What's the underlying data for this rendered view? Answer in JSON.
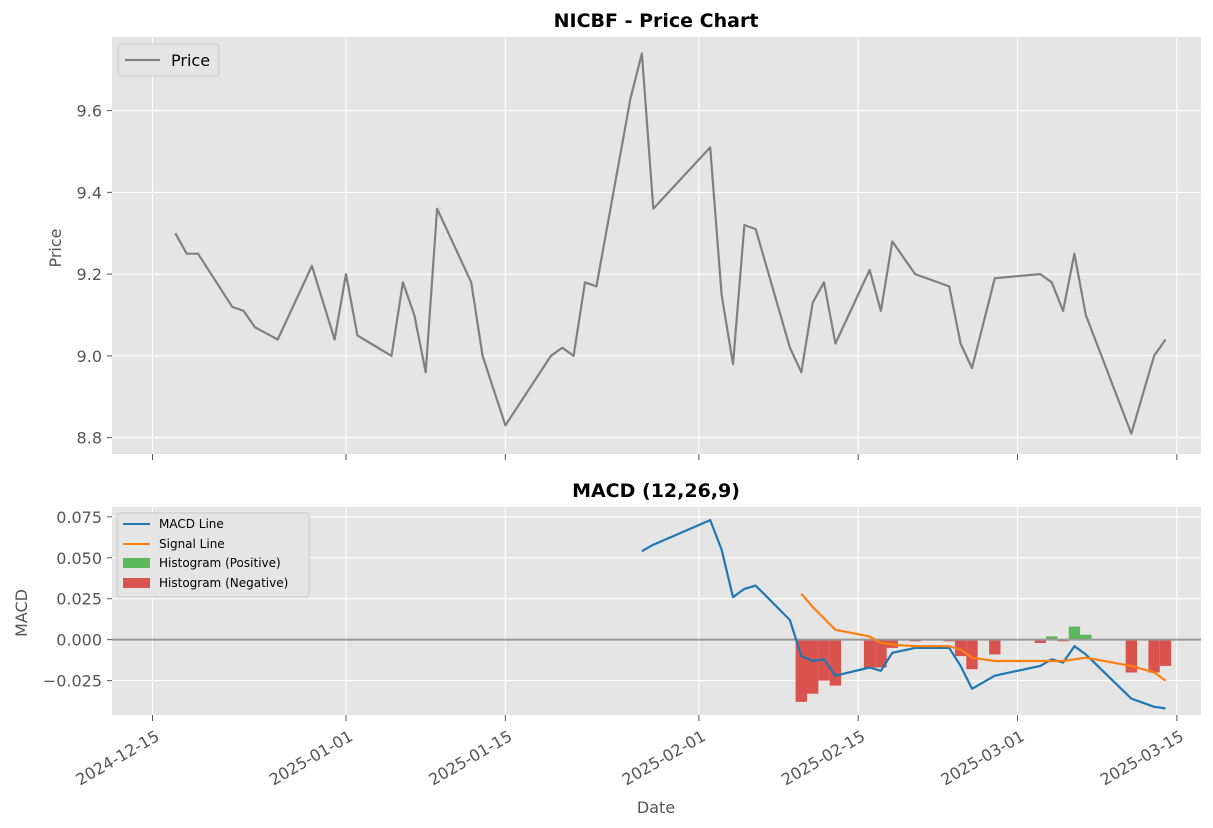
{
  "chart_data": [
    {
      "type": "line",
      "title": "NICBF - Price Chart",
      "xlabel": "",
      "ylabel": "Price",
      "ylim": [
        8.76,
        9.78
      ],
      "yticks": [
        "8.8",
        "9.0",
        "9.2",
        "9.4",
        "9.6"
      ],
      "legend": {
        "position": "top-left",
        "entries": [
          "Price"
        ]
      },
      "grid": true,
      "colors": {
        "price": "#808080",
        "panel": "#e5e5e5",
        "grid": "#ffffff"
      },
      "series": [
        {
          "name": "Price",
          "x": [
            "2024-12-17",
            "2024-12-18",
            "2024-12-19",
            "2024-12-22",
            "2024-12-23",
            "2024-12-24",
            "2024-12-26",
            "2024-12-29",
            "2024-12-31",
            "2025-01-01",
            "2025-01-02",
            "2025-01-05",
            "2025-01-06",
            "2025-01-07",
            "2025-01-08",
            "2025-01-09",
            "2025-01-12",
            "2025-01-13",
            "2025-01-15",
            "2025-01-19",
            "2025-01-20",
            "2025-01-21",
            "2025-01-22",
            "2025-01-23",
            "2025-01-26",
            "2025-01-27",
            "2025-01-28",
            "2025-02-02",
            "2025-02-03",
            "2025-02-04",
            "2025-02-05",
            "2025-02-06",
            "2025-02-09",
            "2025-02-10",
            "2025-02-11",
            "2025-02-12",
            "2025-02-13",
            "2025-02-16",
            "2025-02-17",
            "2025-02-18",
            "2025-02-20",
            "2025-02-23",
            "2025-02-24",
            "2025-02-25",
            "2025-02-27",
            "2025-03-03",
            "2025-03-04",
            "2025-03-05",
            "2025-03-06",
            "2025-03-07",
            "2025-03-11",
            "2025-03-13",
            "2025-03-14"
          ],
          "values": [
            9.3,
            9.25,
            9.25,
            9.12,
            9.11,
            9.07,
            9.04,
            9.22,
            9.04,
            9.2,
            9.05,
            9.0,
            9.18,
            9.1,
            8.96,
            9.36,
            9.18,
            9.0,
            8.83,
            9.0,
            9.02,
            9.0,
            9.18,
            9.17,
            9.63,
            9.74,
            9.36,
            9.51,
            9.15,
            8.98,
            9.32,
            9.31,
            9.02,
            8.96,
            9.13,
            9.18,
            9.03,
            9.21,
            9.11,
            9.28,
            9.2,
            9.17,
            9.03,
            8.97,
            9.19,
            9.2,
            9.18,
            9.11,
            9.25,
            9.1,
            8.81,
            9.0,
            9.04
          ]
        }
      ]
    },
    {
      "type": "line",
      "title": "MACD (12,26,9)",
      "xlabel": "Date",
      "ylabel": "MACD",
      "ylim": [
        -0.046,
        0.081
      ],
      "yticks": [
        "−0.025",
        "0.000",
        "0.025",
        "0.050",
        "0.075"
      ],
      "xticks": [
        "2024-12-15",
        "2025-01-01",
        "2025-01-15",
        "2025-02-01",
        "2025-02-15",
        "2025-03-01",
        "2025-03-15"
      ],
      "legend": {
        "position": "top-left",
        "entries": [
          "MACD Line",
          "Signal Line",
          "Histogram (Positive)",
          "Histogram (Negative)"
        ]
      },
      "grid": true,
      "colors": {
        "macd": "#1f77b4",
        "signal": "#ff7f0e",
        "hist_pos": "#5cb85c",
        "hist_neg": "#d9534f",
        "zero": "#999999"
      },
      "series": [
        {
          "name": "MACD Line",
          "x": [
            "2025-01-27",
            "2025-01-28",
            "2025-02-02",
            "2025-02-03",
            "2025-02-04",
            "2025-02-05",
            "2025-02-06",
            "2025-02-09",
            "2025-02-10",
            "2025-02-11",
            "2025-02-12",
            "2025-02-13",
            "2025-02-16",
            "2025-02-17",
            "2025-02-18",
            "2025-02-20",
            "2025-02-23",
            "2025-02-24",
            "2025-02-25",
            "2025-02-27",
            "2025-03-03",
            "2025-03-04",
            "2025-03-05",
            "2025-03-06",
            "2025-03-07",
            "2025-03-11",
            "2025-03-13",
            "2025-03-14"
          ],
          "values": [
            0.054,
            0.058,
            0.073,
            0.055,
            0.026,
            0.031,
            0.033,
            0.012,
            -0.01,
            -0.013,
            -0.012,
            -0.022,
            -0.017,
            -0.019,
            -0.008,
            -0.005,
            -0.005,
            -0.016,
            -0.03,
            -0.022,
            -0.016,
            -0.012,
            -0.014,
            -0.004,
            -0.009,
            -0.036,
            -0.041,
            -0.042
          ]
        },
        {
          "name": "Signal Line",
          "x": [
            "2025-02-10",
            "2025-02-11",
            "2025-02-12",
            "2025-02-13",
            "2025-02-16",
            "2025-02-17",
            "2025-02-18",
            "2025-02-20",
            "2025-02-23",
            "2025-02-24",
            "2025-02-25",
            "2025-02-27",
            "2025-03-03",
            "2025-03-04",
            "2025-03-05",
            "2025-03-06",
            "2025-03-07",
            "2025-03-11",
            "2025-03-13",
            "2025-03-14"
          ],
          "values": [
            0.028,
            0.02,
            0.013,
            0.006,
            0.002,
            -0.002,
            -0.003,
            -0.004,
            -0.004,
            -0.006,
            -0.011,
            -0.013,
            -0.013,
            -0.013,
            -0.013,
            -0.012,
            -0.011,
            -0.016,
            -0.02,
            -0.025
          ]
        },
        {
          "name": "Histogram",
          "x": [
            "2025-02-10",
            "2025-02-11",
            "2025-02-12",
            "2025-02-13",
            "2025-02-16",
            "2025-02-17",
            "2025-02-18",
            "2025-02-20",
            "2025-02-23",
            "2025-02-24",
            "2025-02-25",
            "2025-02-27",
            "2025-03-03",
            "2025-03-04",
            "2025-03-05",
            "2025-03-06",
            "2025-03-07",
            "2025-03-11",
            "2025-03-13",
            "2025-03-14"
          ],
          "values": [
            -0.038,
            -0.033,
            -0.025,
            -0.028,
            -0.017,
            -0.017,
            -0.005,
            -0.001,
            -0.001,
            -0.01,
            -0.018,
            -0.009,
            -0.002,
            0.002,
            -0.001,
            0.008,
            0.003,
            -0.02,
            -0.02,
            -0.016
          ]
        }
      ]
    }
  ]
}
